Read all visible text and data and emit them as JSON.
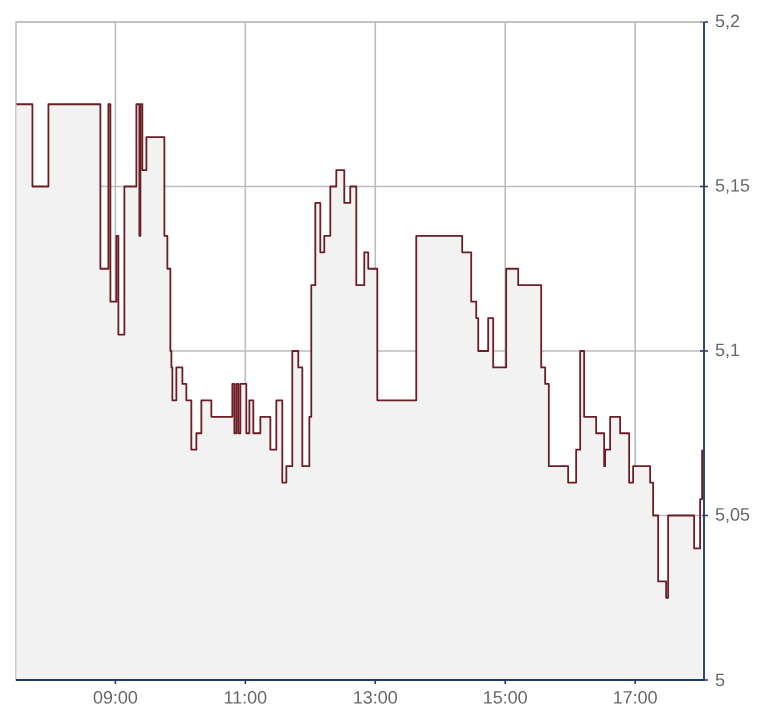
{
  "chart_data": {
    "type": "area",
    "color": "#6b1f24",
    "x": [
      7.477,
      7.723,
      7.723,
      7.969,
      7.969,
      8.769,
      8.769,
      8.892,
      8.892,
      8.923,
      8.923,
      9.015,
      9.015,
      9.046,
      9.046,
      9.138,
      9.138,
      9.323,
      9.323,
      9.369,
      9.369,
      9.385,
      9.385,
      9.415,
      9.415,
      9.477,
      9.477,
      9.754,
      9.754,
      9.8,
      9.8,
      9.846,
      9.846,
      9.862,
      9.862,
      9.877,
      9.877,
      9.938,
      9.938,
      10.031,
      10.031,
      10.092,
      10.092,
      10.169,
      10.169,
      10.246,
      10.246,
      10.323,
      10.323,
      10.477,
      10.477,
      10.8,
      10.8,
      10.831,
      10.831,
      10.862,
      10.862,
      10.892,
      10.892,
      10.923,
      10.923,
      11.015,
      11.015,
      11.062,
      11.062,
      11.123,
      11.123,
      11.231,
      11.231,
      11.385,
      11.385,
      11.477,
      11.477,
      11.569,
      11.569,
      11.631,
      11.631,
      11.723,
      11.723,
      11.815,
      11.815,
      11.877,
      11.877,
      11.985,
      11.985,
      12.015,
      12.015,
      12.077,
      12.077,
      12.154,
      12.154,
      12.215,
      12.215,
      12.308,
      12.308,
      12.4,
      12.4,
      12.523,
      12.523,
      12.615,
      12.615,
      12.708,
      12.708,
      12.831,
      12.831,
      12.892,
      12.892,
      13.031,
      13.031,
      13.631,
      13.631,
      14.338,
      14.338,
      14.477,
      14.477,
      14.554,
      14.554,
      14.585,
      14.585,
      14.738,
      14.738,
      14.815,
      14.815,
      15.015,
      15.015,
      15.2,
      15.2,
      15.554,
      15.554,
      15.615,
      15.615,
      15.671,
      15.671,
      15.969,
      15.969,
      16.092,
      16.092,
      16.154,
      16.154,
      16.215,
      16.215,
      16.4,
      16.4,
      16.523,
      16.523,
      16.538,
      16.538,
      16.615,
      16.615,
      16.769,
      16.769,
      16.908,
      16.908,
      16.969,
      16.969,
      17.231,
      17.231,
      17.277,
      17.277,
      17.354,
      17.354,
      17.477,
      17.477,
      17.508,
      17.508,
      17.908,
      17.908,
      18.0,
      18.0,
      18.031,
      18.031
    ],
    "values": [
      5.175,
      5.175,
      5.15,
      5.15,
      5.175,
      5.175,
      5.125,
      5.125,
      5.175,
      5.175,
      5.115,
      5.115,
      5.135,
      5.135,
      5.105,
      5.105,
      5.15,
      5.15,
      5.175,
      5.175,
      5.135,
      5.135,
      5.175,
      5.175,
      5.155,
      5.155,
      5.165,
      5.165,
      5.135,
      5.135,
      5.125,
      5.125,
      5.1,
      5.1,
      5.095,
      5.095,
      5.085,
      5.085,
      5.095,
      5.095,
      5.09,
      5.09,
      5.085,
      5.085,
      5.07,
      5.07,
      5.075,
      5.075,
      5.085,
      5.085,
      5.08,
      5.08,
      5.09,
      5.09,
      5.075,
      5.075,
      5.09,
      5.09,
      5.075,
      5.075,
      5.09,
      5.09,
      5.075,
      5.075,
      5.085,
      5.085,
      5.075,
      5.075,
      5.08,
      5.08,
      5.07,
      5.07,
      5.085,
      5.085,
      5.06,
      5.06,
      5.065,
      5.065,
      5.1,
      5.1,
      5.095,
      5.095,
      5.065,
      5.065,
      5.08,
      5.08,
      5.12,
      5.12,
      5.145,
      5.145,
      5.13,
      5.13,
      5.135,
      5.135,
      5.15,
      5.15,
      5.155,
      5.155,
      5.145,
      5.145,
      5.15,
      5.15,
      5.12,
      5.12,
      5.13,
      5.13,
      5.125,
      5.125,
      5.085,
      5.085,
      5.135,
      5.135,
      5.13,
      5.13,
      5.115,
      5.115,
      5.11,
      5.11,
      5.1,
      5.1,
      5.11,
      5.11,
      5.095,
      5.095,
      5.125,
      5.125,
      5.12,
      5.12,
      5.095,
      5.095,
      5.09,
      5.09,
      5.065,
      5.065,
      5.06,
      5.06,
      5.07,
      5.07,
      5.1,
      5.1,
      5.08,
      5.08,
      5.075,
      5.075,
      5.065,
      5.065,
      5.07,
      5.07,
      5.08,
      5.08,
      5.075,
      5.075,
      5.06,
      5.06,
      5.065,
      5.065,
      5.06,
      5.06,
      5.05,
      5.05,
      5.03,
      5.03,
      5.025,
      5.025,
      5.05,
      5.05,
      5.04,
      5.04,
      5.055,
      5.055,
      5.07
    ],
    "xlim": [
      7.47,
      18.06
    ],
    "ylim": [
      5,
      5.2
    ],
    "xticks": [
      {
        "value": 9,
        "label": "09:00"
      },
      {
        "value": 11,
        "label": "11:00"
      },
      {
        "value": 13,
        "label": "13:00"
      },
      {
        "value": 15,
        "label": "15:00"
      },
      {
        "value": 17,
        "label": "17:00"
      }
    ],
    "yticks": [
      {
        "value": 5,
        "label": "5"
      },
      {
        "value": 5.05,
        "label": "5,05"
      },
      {
        "value": 5.1,
        "label": "5,1"
      },
      {
        "value": 5.15,
        "label": "5,15"
      },
      {
        "value": 5.2,
        "label": "5,2"
      }
    ],
    "grid": true,
    "marker": "none"
  }
}
